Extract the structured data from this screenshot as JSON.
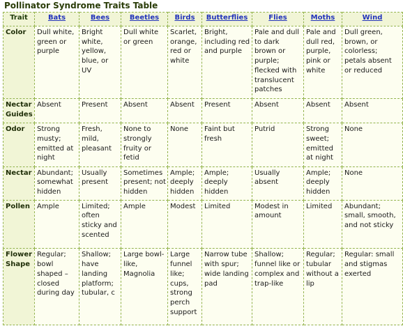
{
  "title": "Pollinator Syndrome Traits Table",
  "columns": [
    {
      "label": "Trait",
      "link": false
    },
    {
      "label": "Bats",
      "link": true
    },
    {
      "label": "Bees",
      "link": true
    },
    {
      "label": "Beetles",
      "link": true
    },
    {
      "label": "Birds",
      "link": true
    },
    {
      "label": "Butterflies",
      "link": true
    },
    {
      "label": "Flies",
      "link": true
    },
    {
      "label": "Moths",
      "link": true
    },
    {
      "label": "Wind",
      "link": true
    }
  ],
  "rows": [
    {
      "label": "Color",
      "cells": [
        "Dull white, green or purple",
        "Bright white, yellow, blue, or UV",
        "Dull white or green",
        "Scarlet, orange, red or white",
        "Bright, including red and purple",
        "Pale and dull to dark brown or purple; flecked with translucent patches",
        "Pale and dull red, purple, pink or white",
        "Dull green, brown, or colorless; petals absent or reduced"
      ]
    },
    {
      "label": "Nectar Guides",
      "cells": [
        "Absent",
        "Present",
        "Absent",
        "Absent",
        "Present",
        "Absent",
        "Absent",
        "Absent"
      ]
    },
    {
      "label": "Odor",
      "cells": [
        "Strong musty; emitted at night",
        "Fresh, mild, pleasant",
        "None to strongly fruity or fetid",
        "None",
        "Faint but fresh",
        "Putrid",
        "Strong sweet; emitted at night",
        "None"
      ]
    },
    {
      "label": "Nectar",
      "cells": [
        "Abundant; somewhat hidden",
        "Usually present",
        "Sometimes present; not hidden",
        "Ample; deeply hidden",
        "Ample; deeply hidden",
        "Usually absent",
        "Ample; deeply hidden",
        "None"
      ]
    },
    {
      "label": "Pollen",
      "cells": [
        "Ample",
        "Limited; often sticky and scented",
        "Ample",
        "Modest",
        "Limited",
        "Modest in amount",
        "Limited",
        "Abundant; small, smooth, and not sticky"
      ]
    },
    {
      "label": "Flower Shape",
      "cells": [
        "Regular; bowl shaped – closed during day",
        "Shallow; have landing platform; tubular, c",
        "Large bowl-like, Magnolia",
        "Large funnel like; cups, strong perch support",
        "Narrow tube with spur; wide landing pad",
        "Shallow; funnel like or complex and trap-like",
        "Regular; tubular without a lip",
        "Regular: small and stigmas exerted"
      ]
    }
  ]
}
